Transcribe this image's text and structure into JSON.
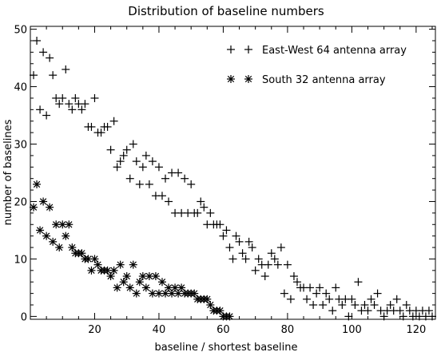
{
  "chart_data": {
    "type": "scatter",
    "title": "Distribution of baseline numbers",
    "xlabel": "baseline / shortest baseline",
    "ylabel": "number of baselines",
    "xlim": [
      0,
      126
    ],
    "ylim": [
      -0.5,
      50.5
    ],
    "xticks": [
      20,
      40,
      60,
      80,
      100,
      120
    ],
    "yticks": [
      0,
      10,
      20,
      30,
      40,
      50
    ],
    "grid": false,
    "legend_position": "top-right",
    "series": [
      {
        "name": "East-West 64 antenna array",
        "marker": "plus",
        "points": [
          [
            1,
            42
          ],
          [
            2,
            48
          ],
          [
            3,
            36
          ],
          [
            4,
            46
          ],
          [
            5,
            35
          ],
          [
            6,
            45
          ],
          [
            7,
            42
          ],
          [
            8,
            38
          ],
          [
            9,
            37
          ],
          [
            10,
            38
          ],
          [
            11,
            43
          ],
          [
            12,
            37
          ],
          [
            13,
            36
          ],
          [
            14,
            38
          ],
          [
            15,
            37
          ],
          [
            16,
            36
          ],
          [
            17,
            37
          ],
          [
            18,
            33
          ],
          [
            19,
            33
          ],
          [
            20,
            38
          ],
          [
            21,
            32
          ],
          [
            22,
            32
          ],
          [
            23,
            33
          ],
          [
            24,
            33
          ],
          [
            25,
            29
          ],
          [
            26,
            34
          ],
          [
            27,
            26
          ],
          [
            28,
            27
          ],
          [
            29,
            28
          ],
          [
            30,
            29
          ],
          [
            31,
            24
          ],
          [
            32,
            30
          ],
          [
            33,
            27
          ],
          [
            34,
            23
          ],
          [
            35,
            26
          ],
          [
            36,
            28
          ],
          [
            37,
            23
          ],
          [
            38,
            27
          ],
          [
            39,
            21
          ],
          [
            40,
            26
          ],
          [
            41,
            21
          ],
          [
            42,
            24
          ],
          [
            43,
            20
          ],
          [
            44,
            25
          ],
          [
            45,
            18
          ],
          [
            46,
            25
          ],
          [
            47,
            18
          ],
          [
            48,
            24
          ],
          [
            49,
            18
          ],
          [
            50,
            23
          ],
          [
            51,
            18
          ],
          [
            52,
            18
          ],
          [
            53,
            20
          ],
          [
            54,
            19
          ],
          [
            55,
            16
          ],
          [
            56,
            18
          ],
          [
            57,
            16
          ],
          [
            58,
            16
          ],
          [
            59,
            16
          ],
          [
            60,
            14
          ],
          [
            61,
            15
          ],
          [
            62,
            12
          ],
          [
            63,
            10
          ],
          [
            64,
            14
          ],
          [
            65,
            13
          ],
          [
            66,
            11
          ],
          [
            67,
            10
          ],
          [
            68,
            13
          ],
          [
            69,
            12
          ],
          [
            70,
            8
          ],
          [
            71,
            10
          ],
          [
            72,
            9
          ],
          [
            73,
            7
          ],
          [
            74,
            9
          ],
          [
            75,
            11
          ],
          [
            76,
            10
          ],
          [
            77,
            9
          ],
          [
            78,
            12
          ],
          [
            79,
            4
          ],
          [
            80,
            9
          ],
          [
            81,
            3
          ],
          [
            82,
            7
          ],
          [
            83,
            6
          ],
          [
            84,
            5
          ],
          [
            85,
            5
          ],
          [
            86,
            3
          ],
          [
            87,
            5
          ],
          [
            88,
            2
          ],
          [
            89,
            4
          ],
          [
            90,
            5
          ],
          [
            91,
            2
          ],
          [
            92,
            4
          ],
          [
            93,
            3
          ],
          [
            94,
            1
          ],
          [
            95,
            5
          ],
          [
            96,
            3
          ],
          [
            97,
            2
          ],
          [
            98,
            3
          ],
          [
            99,
            0
          ],
          [
            100,
            3
          ],
          [
            101,
            2
          ],
          [
            102,
            6
          ],
          [
            103,
            1
          ],
          [
            104,
            2
          ],
          [
            105,
            1
          ],
          [
            106,
            3
          ],
          [
            107,
            2
          ],
          [
            108,
            4
          ],
          [
            109,
            1
          ],
          [
            110,
            0
          ],
          [
            111,
            1
          ],
          [
            112,
            2
          ],
          [
            113,
            1
          ],
          [
            114,
            3
          ],
          [
            115,
            1
          ],
          [
            116,
            0
          ],
          [
            117,
            2
          ],
          [
            118,
            1
          ],
          [
            119,
            0
          ],
          [
            120,
            1
          ],
          [
            121,
            0
          ],
          [
            122,
            1
          ],
          [
            123,
            0
          ],
          [
            124,
            1
          ],
          [
            125,
            0
          ]
        ]
      },
      {
        "name": "South 32 antenna array",
        "marker": "asterisk",
        "points": [
          [
            1,
            19
          ],
          [
            2,
            23
          ],
          [
            3,
            15
          ],
          [
            4,
            20
          ],
          [
            5,
            14
          ],
          [
            6,
            19
          ],
          [
            7,
            13
          ],
          [
            8,
            16
          ],
          [
            9,
            12
          ],
          [
            10,
            16
          ],
          [
            11,
            14
          ],
          [
            12,
            16
          ],
          [
            13,
            12
          ],
          [
            14,
            11
          ],
          [
            15,
            11
          ],
          [
            16,
            11
          ],
          [
            17,
            10
          ],
          [
            18,
            10
          ],
          [
            19,
            8
          ],
          [
            20,
            10
          ],
          [
            21,
            9
          ],
          [
            22,
            8
          ],
          [
            23,
            8
          ],
          [
            24,
            8
          ],
          [
            25,
            7
          ],
          [
            26,
            8
          ],
          [
            27,
            5
          ],
          [
            28,
            9
          ],
          [
            29,
            6
          ],
          [
            30,
            7
          ],
          [
            31,
            5
          ],
          [
            32,
            9
          ],
          [
            33,
            4
          ],
          [
            34,
            6
          ],
          [
            35,
            7
          ],
          [
            36,
            5
          ],
          [
            37,
            7
          ],
          [
            38,
            4
          ],
          [
            39,
            7
          ],
          [
            40,
            4
          ],
          [
            41,
            6
          ],
          [
            42,
            4
          ],
          [
            43,
            5
          ],
          [
            44,
            4
          ],
          [
            45,
            5
          ],
          [
            46,
            4
          ],
          [
            47,
            5
          ],
          [
            48,
            4
          ],
          [
            49,
            4
          ],
          [
            50,
            4
          ],
          [
            51,
            4
          ],
          [
            52,
            3
          ],
          [
            53,
            3
          ],
          [
            54,
            3
          ],
          [
            55,
            3
          ],
          [
            56,
            2
          ],
          [
            57,
            1
          ],
          [
            58,
            1
          ],
          [
            59,
            1
          ],
          [
            60,
            0
          ],
          [
            61,
            0
          ],
          [
            62,
            0
          ]
        ]
      }
    ]
  }
}
